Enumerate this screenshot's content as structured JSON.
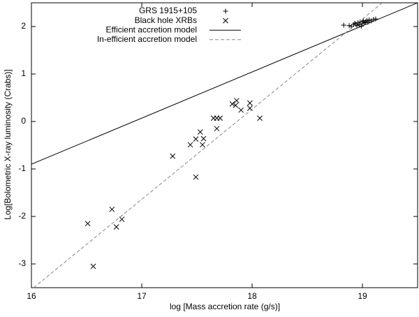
{
  "chart_data": {
    "type": "scatter",
    "x_label": "log [Mass accretion rate (g/s)]",
    "y_label": "Log[Bolometric X-ray luminosity (Crabs)]",
    "xlim": [
      16,
      19.5
    ],
    "ylim": [
      -3.5,
      2.5
    ],
    "xticks": [
      16,
      17,
      18,
      19
    ],
    "yticks": [
      -3,
      -2,
      -1,
      0,
      1,
      2
    ],
    "legend": "top-left",
    "series": [
      {
        "name": "GRS 1915+105",
        "color": "#000000",
        "marker": "plus",
        "x": [
          18.83,
          18.88,
          18.9,
          18.92,
          18.93,
          18.94,
          18.95,
          18.96,
          18.97,
          18.98,
          18.99,
          19.0,
          19.0,
          19.01,
          19.02,
          19.03,
          19.04,
          19.05,
          19.06,
          19.08,
          19.1,
          19.12
        ],
        "values": [
          2.03,
          2.02,
          2.0,
          2.04,
          2.07,
          2.05,
          2.02,
          2.08,
          2.04,
          2.1,
          2.01,
          2.06,
          2.1,
          2.12,
          2.08,
          2.1,
          2.13,
          2.09,
          2.14,
          2.12,
          2.15,
          2.16
        ]
      },
      {
        "name": "Black hole XRBs",
        "color": "#000000",
        "marker": "cross",
        "x": [
          16.51,
          16.56,
          16.73,
          16.77,
          16.82,
          17.28,
          17.44,
          17.49,
          17.53,
          17.56,
          17.55,
          17.49,
          17.65,
          17.68,
          17.71,
          17.68,
          17.82,
          17.85,
          17.86,
          17.9,
          17.98,
          17.98,
          18.07
        ],
        "values": [
          -2.15,
          -3.05,
          -1.85,
          -2.22,
          -2.06,
          -0.73,
          -0.49,
          -0.37,
          -0.22,
          -0.36,
          -0.49,
          -1.17,
          0.07,
          0.07,
          0.07,
          -0.15,
          0.37,
          0.34,
          0.44,
          0.24,
          0.39,
          0.28,
          0.07
        ]
      },
      {
        "name": "Efficient accretion model",
        "color": "#000000",
        "dash": "none",
        "x": [
          16,
          19.5
        ],
        "values": [
          -0.9,
          2.5
        ]
      },
      {
        "name": "In-efficient accretion model",
        "color": "#888888",
        "dash": "5,3",
        "x": [
          16.02,
          19.18
        ],
        "values": [
          -3.5,
          2.5
        ]
      }
    ]
  }
}
